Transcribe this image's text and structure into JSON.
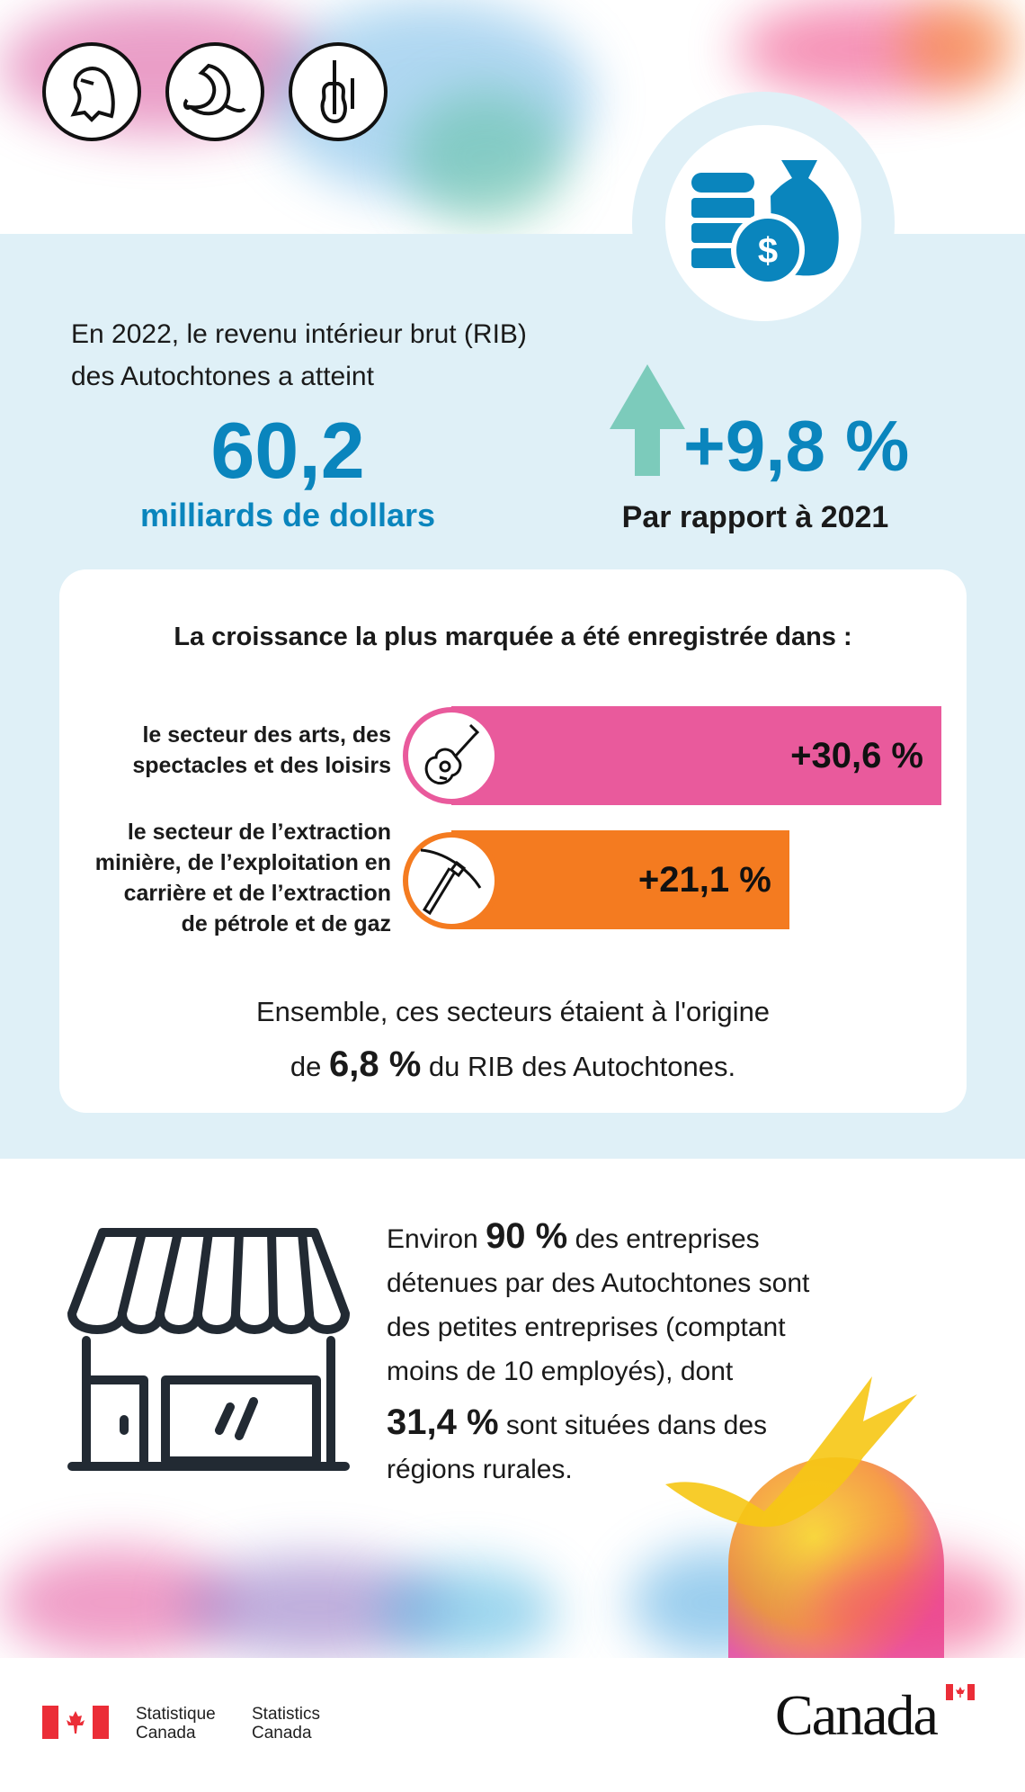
{
  "header": {
    "icons": [
      "eagle-icon",
      "whale-icon",
      "fiddle-icon"
    ],
    "money_icon": "coins-and-money-bag-icon"
  },
  "gdp": {
    "intro_line1": "En 2022, le revenu intérieur brut (RIB)",
    "intro_line2": "des Autochtones a atteint",
    "value": "60,2",
    "unit": "milliards de dollars",
    "change": "+9,8 %",
    "change_label": "Par rapport à 2021",
    "arrow_icon": "arrow-up-icon"
  },
  "growth": {
    "title": "La croissance la plus marquée a été enregistrée dans :",
    "sectors": [
      {
        "label_lines": [
          "le secteur des arts, des",
          "spectacles et des loisirs"
        ],
        "value": "+30,6 %",
        "percent": 30.6,
        "color": "#e95a9c",
        "icon": "guitar-icon"
      },
      {
        "label_lines": [
          "le secteur de l’extraction",
          "minière, de l’exploitation en",
          "carrière et de l’extraction",
          "de pétrole et de gaz"
        ],
        "value": "+21,1 %",
        "percent": 21.1,
        "color": "#f47b20",
        "icon": "pickaxe-icon"
      }
    ],
    "summary_line1": "Ensemble, ces secteurs étaient à l'origine",
    "summary_pre": "de ",
    "summary_value": "6,8 %",
    "summary_post": " du RIB des Autochtones."
  },
  "business": {
    "icon": "storefront-icon",
    "t1": "Environ ",
    "v1": "90 %",
    "t2": " des entreprises",
    "line2": "détenues par des Autochtones sont",
    "line3": "des petites entreprises (comptant",
    "line4": "moins de 10 employés), dont",
    "v2": "31,4 %",
    "t3": " sont situées dans des",
    "line6": "régions rurales."
  },
  "footer": {
    "fr_line1": "Statistique",
    "fr_line2": "Canada",
    "en_line1": "Statistics",
    "en_line2": "Canada",
    "wordmark": "Canada"
  },
  "colors": {
    "accent_blue": "#0a85bd",
    "band": "#dff0f7",
    "arrow": "#7ccbbb",
    "pink": "#e95a9c",
    "orange": "#f47b20",
    "flag_red": "#eb2d37"
  }
}
